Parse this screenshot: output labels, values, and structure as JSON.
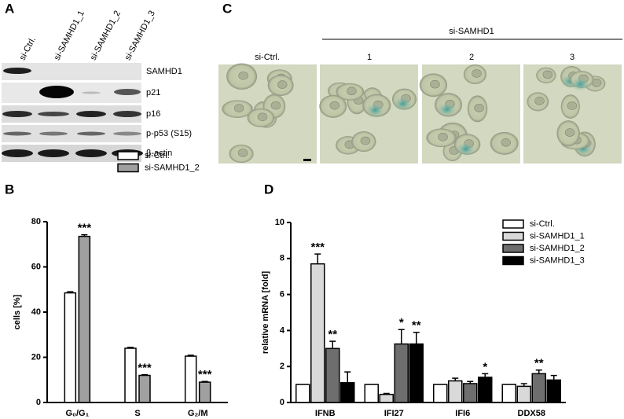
{
  "blot": {
    "panel": "A",
    "lanes": [
      "si-Ctrl.",
      "si-SAMHD1_1",
      "si-SAMHD1_2",
      "si-SAMHD1_3"
    ],
    "rows": [
      "SAMHD1",
      "p21",
      "p16",
      "p-p53 (S15)",
      "β-actin"
    ]
  },
  "microscopy": {
    "panel": "C",
    "group_label": "si-SAMHD1",
    "labels": [
      "si-Ctrl.",
      "1",
      "2",
      "3"
    ]
  },
  "chart_data": [
    {
      "type": "bar",
      "panel": "B",
      "y_label": "cells [%]",
      "categories": [
        "G₀/G₁",
        "S",
        "G₂/M"
      ],
      "series": [
        {
          "name": "si-Ctrl.",
          "color": "#ffffff",
          "values": [
            48.5,
            24,
            20.5
          ],
          "errors": [
            0.5,
            0.4,
            0.4
          ],
          "significance": [
            null,
            null,
            null
          ]
        },
        {
          "name": "si-SAMHD1_2",
          "color": "#a0a0a0",
          "values": [
            73.5,
            12,
            9
          ],
          "errors": [
            0.7,
            0.3,
            0.3
          ],
          "significance": [
            "***",
            "***",
            "***"
          ]
        }
      ],
      "ylim": [
        0,
        80
      ],
      "yticks": [
        0,
        20,
        40,
        60,
        80
      ],
      "legend": "upper right"
    },
    {
      "type": "bar",
      "panel": "D",
      "y_label": "relative mRNA [fold]",
      "categories": [
        "IFNB",
        "IFI27",
        "IFI6",
        "DDX58"
      ],
      "series": [
        {
          "name": "si-Ctrl.",
          "color": "#ffffff",
          "values": [
            1,
            1,
            1,
            1
          ],
          "errors": [
            0,
            0,
            0,
            0
          ],
          "significance": [
            null,
            null,
            null,
            null
          ]
        },
        {
          "name": "si-SAMHD1_1",
          "color": "#d9d9d9",
          "values": [
            7.7,
            0.45,
            1.2,
            0.9
          ],
          "errors": [
            0.55,
            0.05,
            0.15,
            0.15
          ],
          "significance": [
            "***",
            null,
            null,
            null
          ]
        },
        {
          "name": "si-SAMHD1_2",
          "color": "#6e6e6e",
          "values": [
            3.0,
            3.25,
            1.05,
            1.6
          ],
          "errors": [
            0.4,
            0.8,
            0.12,
            0.2
          ],
          "significance": [
            "**",
            "*",
            null,
            "**"
          ]
        },
        {
          "name": "si-SAMHD1_3",
          "color": "#000000",
          "values": [
            1.1,
            3.25,
            1.4,
            1.25
          ],
          "errors": [
            0.6,
            0.65,
            0.2,
            0.25
          ],
          "significance": [
            null,
            "**",
            "*",
            null
          ]
        }
      ],
      "ylim": [
        0,
        10
      ],
      "yticks": [
        0,
        2,
        4,
        6,
        8,
        10
      ],
      "legend": "upper right"
    }
  ]
}
